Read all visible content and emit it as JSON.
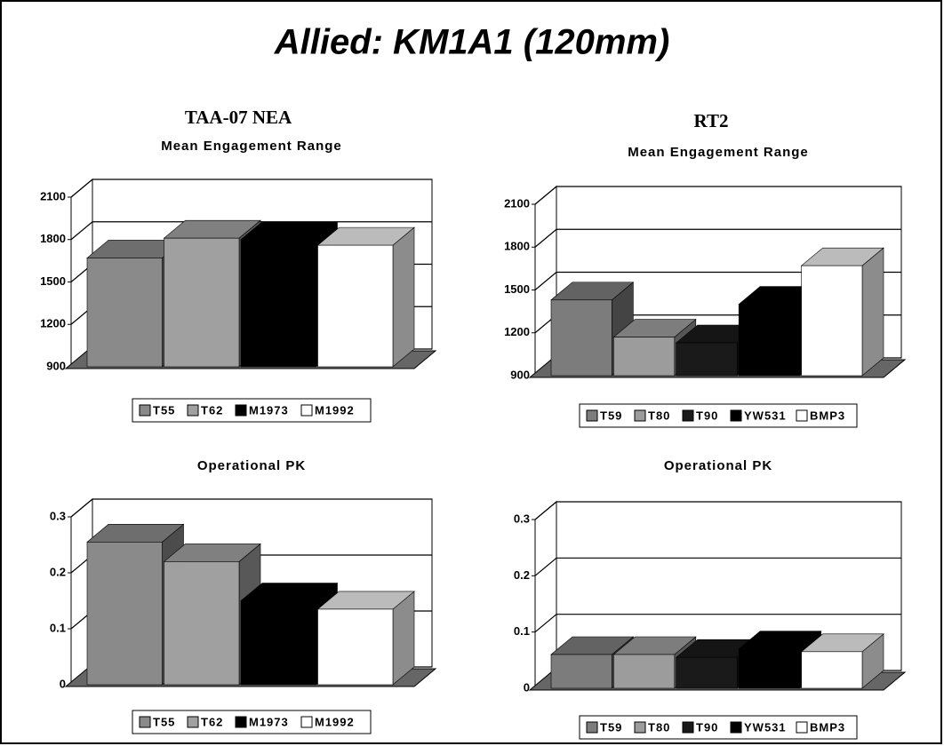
{
  "title": "Allied:  KM1A1 (120mm)",
  "columns": [
    "TAA-07 NEA",
    "RT2"
  ],
  "chart_data": [
    {
      "type": "bar3d",
      "title": "Mean Engagement Range",
      "categories": [
        "T55",
        "T62",
        "M1973",
        "M1992"
      ],
      "series_colors": [
        "#8a8a8a",
        "#a0a0a0",
        "#000000",
        "#ffffff"
      ],
      "values": [
        1670,
        1810,
        1800,
        1760
      ],
      "ylim": [
        900,
        2100
      ],
      "yticks": [
        900,
        1200,
        1500,
        1800,
        2100
      ],
      "grid": true
    },
    {
      "type": "bar3d",
      "title": "Mean Engagement Range",
      "categories": [
        "T59",
        "T80",
        "T90",
        "YW531",
        "BMP3"
      ],
      "series_colors": [
        "#7c7c7c",
        "#9c9c9c",
        "#1a1a1a",
        "#000000",
        "#ffffff"
      ],
      "values": [
        1430,
        1170,
        1130,
        1400,
        1670
      ],
      "ylim": [
        900,
        2100
      ],
      "yticks": [
        900,
        1200,
        1500,
        1800,
        2100
      ],
      "grid": true
    },
    {
      "type": "bar3d",
      "title": "Operational PK",
      "categories": [
        "T55",
        "T62",
        "M1973",
        "M1992"
      ],
      "series_colors": [
        "#8a8a8a",
        "#a0a0a0",
        "#000000",
        "#ffffff"
      ],
      "values": [
        0.255,
        0.22,
        0.15,
        0.135
      ],
      "ylim": [
        0,
        0.3
      ],
      "yticks": [
        0,
        0.1,
        0.2,
        0.3
      ],
      "grid": true
    },
    {
      "type": "bar3d",
      "title": "Operational PK",
      "categories": [
        "T59",
        "T80",
        "T90",
        "YW531",
        "BMP3"
      ],
      "series_colors": [
        "#7c7c7c",
        "#9c9c9c",
        "#1a1a1a",
        "#000000",
        "#ffffff"
      ],
      "values": [
        0.06,
        0.06,
        0.055,
        0.07,
        0.065
      ],
      "ylim": [
        0,
        0.3
      ],
      "yticks": [
        0,
        0.1,
        0.2,
        0.3
      ],
      "grid": true
    }
  ]
}
